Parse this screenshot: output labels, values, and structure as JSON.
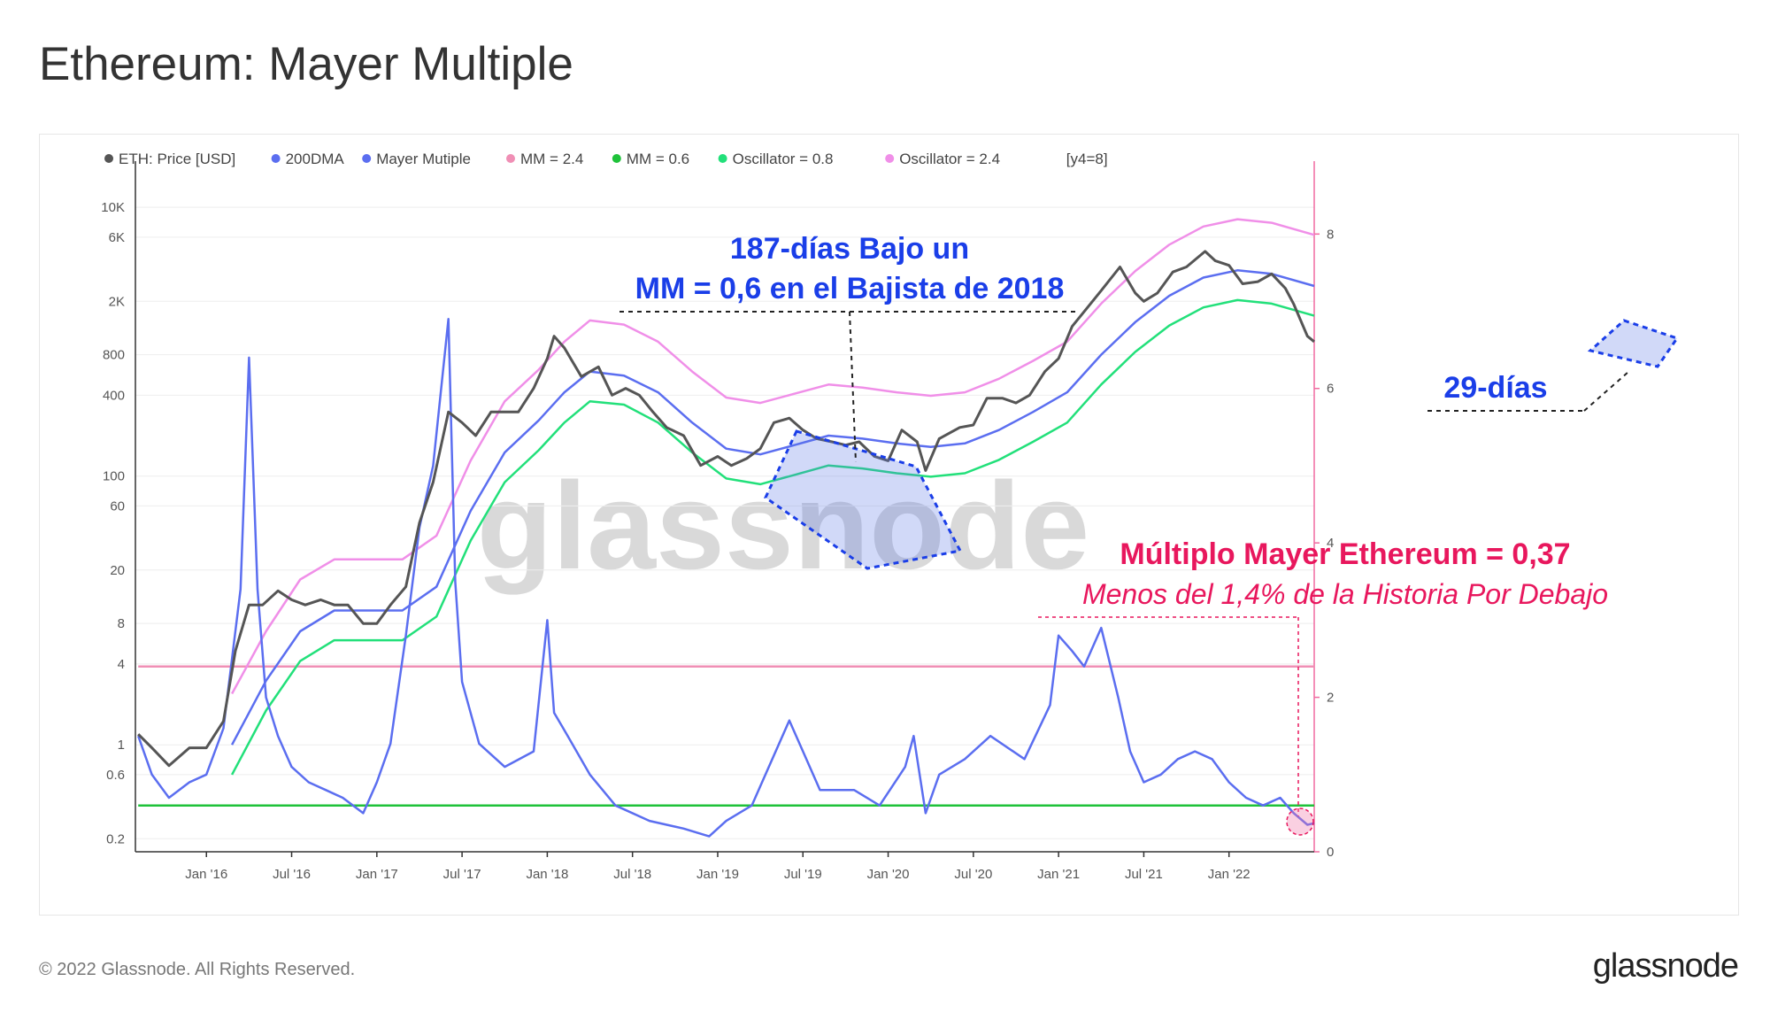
{
  "page": {
    "title": "Ethereum: Mayer Multiple",
    "footer_copyright": "© 2022 Glassnode. All Rights Reserved.",
    "footer_brand": "glassnode",
    "watermark": "glassnode"
  },
  "colors": {
    "price": "#555555",
    "dma": "#5b6ef0",
    "mayer": "#5b6ef0",
    "mm_high": "#f08fb5",
    "mm_low": "#1fc23a",
    "osc_low": "#22e07a",
    "osc_high": "#f08fe8",
    "annotation_blue": "#1a3ee8",
    "annotation_red": "#e8175d"
  },
  "legend": [
    {
      "label": "ETH: Price [USD]",
      "color": "#555555"
    },
    {
      "label": "200DMA",
      "color": "#5b6ef0"
    },
    {
      "label": "Mayer Mutiple",
      "color": "#5b6ef0"
    },
    {
      "label": "MM = 2.4",
      "color": "#f08fb5"
    },
    {
      "label": "MM = 0.6",
      "color": "#1fc23a"
    },
    {
      "label": "Oscillator = 0.8",
      "color": "#22e07a"
    },
    {
      "label": "Oscillator = 2.4",
      "color": "#f08fe8"
    },
    {
      "label": "[y4=8]",
      "color": ""
    }
  ],
  "annotations": {
    "bear_2018_line1": "187-días Bajo un",
    "bear_2018_line2": "MM = 0,6 en el Bajista de 2018",
    "days_2022": "29-días",
    "mm_value": "Múltiplo Mayer Ethereum = 0,37",
    "mm_history": "Menos del 1,4% de la Historia Por Debajo"
  },
  "chart_data": {
    "type": "line",
    "x_range": [
      "2015-08",
      "2022-07"
    ],
    "x_ticks": [
      "Jan '16",
      "Jul '16",
      "Jan '17",
      "Jul '17",
      "Jan '18",
      "Jul '18",
      "Jan '19",
      "Jul '19",
      "Jan '20",
      "Jul '20",
      "Jan '21",
      "Jul '21",
      "Jan '22"
    ],
    "y_left": {
      "scale": "log",
      "range": [
        0.16,
        14000
      ],
      "ticks": [
        "10K",
        "6K",
        "2K",
        "800",
        "400",
        "100",
        "60",
        "20",
        "8",
        "4",
        "1",
        "0.6",
        "0.2"
      ]
    },
    "y_right": {
      "scale": "linear",
      "range": [
        0,
        8.6
      ],
      "ticks": [
        "8",
        "6",
        "4",
        "2",
        "0"
      ]
    },
    "series": [
      {
        "name": "ETH: Price [USD]",
        "axis": "left",
        "x": [
          2015.6,
          2015.68,
          2015.78,
          2015.9,
          2016.0,
          2016.1,
          2016.17,
          2016.25,
          2016.33,
          2016.42,
          2016.5,
          2016.58,
          2016.67,
          2016.75,
          2016.83,
          2016.92,
          2017.0,
          2017.08,
          2017.17,
          2017.25,
          2017.33,
          2017.42,
          2017.5,
          2017.58,
          2017.67,
          2017.75,
          2017.83,
          2017.92,
          2018.0,
          2018.04,
          2018.1,
          2018.2,
          2018.3,
          2018.38,
          2018.46,
          2018.54,
          2018.62,
          2018.7,
          2018.8,
          2018.9,
          2019.0,
          2019.08,
          2019.17,
          2019.25,
          2019.33,
          2019.42,
          2019.5,
          2019.58,
          2019.67,
          2019.75,
          2019.83,
          2019.92,
          2020.0,
          2020.08,
          2020.17,
          2020.22,
          2020.3,
          2020.42,
          2020.5,
          2020.58,
          2020.67,
          2020.75,
          2020.83,
          2020.92,
          2021.0,
          2021.08,
          2021.17,
          2021.25,
          2021.36,
          2021.45,
          2021.5,
          2021.58,
          2021.67,
          2021.75,
          2021.86,
          2021.92,
          2022.0,
          2022.08,
          2022.17,
          2022.25,
          2022.33,
          2022.38,
          2022.46,
          2022.5
        ],
        "y": [
          1.2,
          0.95,
          0.7,
          0.95,
          0.95,
          1.5,
          5,
          11,
          11,
          14,
          12,
          11,
          12,
          11,
          11,
          8,
          8,
          11,
          15,
          45,
          90,
          300,
          250,
          200,
          300,
          300,
          300,
          450,
          750,
          1100,
          900,
          550,
          650,
          400,
          450,
          400,
          300,
          230,
          200,
          120,
          140,
          120,
          135,
          160,
          250,
          270,
          220,
          190,
          180,
          170,
          180,
          140,
          130,
          220,
          180,
          110,
          190,
          230,
          240,
          380,
          380,
          350,
          400,
          600,
          750,
          1300,
          1800,
          2400,
          3600,
          2300,
          2000,
          2300,
          3300,
          3600,
          4700,
          4000,
          3700,
          2700,
          2800,
          3200,
          2500,
          1900,
          1100,
          1000
        ]
      },
      {
        "name": "200DMA",
        "axis": "left",
        "x": [
          2016.15,
          2016.35,
          2016.55,
          2016.75,
          2016.95,
          2017.15,
          2017.35,
          2017.55,
          2017.75,
          2017.95,
          2018.1,
          2018.25,
          2018.45,
          2018.65,
          2018.85,
          2019.05,
          2019.25,
          2019.45,
          2019.65,
          2019.85,
          2020.05,
          2020.25,
          2020.45,
          2020.65,
          2020.85,
          2021.05,
          2021.25,
          2021.45,
          2021.65,
          2021.85,
          2022.05,
          2022.25,
          2022.5
        ],
        "y": [
          1.0,
          3,
          7,
          10,
          10,
          10,
          15,
          55,
          150,
          260,
          420,
          600,
          560,
          420,
          250,
          160,
          145,
          170,
          200,
          190,
          175,
          165,
          175,
          220,
          300,
          420,
          800,
          1400,
          2200,
          3000,
          3400,
          3200,
          2600
        ]
      },
      {
        "name": "Mayer Mutiple",
        "axis": "right",
        "x": [
          2015.6,
          2015.68,
          2015.78,
          2015.9,
          2016.0,
          2016.1,
          2016.2,
          2016.25,
          2016.3,
          2016.35,
          2016.42,
          2016.5,
          2016.6,
          2016.7,
          2016.8,
          2016.92,
          2017.0,
          2017.08,
          2017.17,
          2017.25,
          2017.33,
          2017.42,
          2017.46,
          2017.5,
          2017.6,
          2017.75,
          2017.92,
          2018.0,
          2018.04,
          2018.12,
          2018.25,
          2018.4,
          2018.6,
          2018.8,
          2018.95,
          2019.05,
          2019.2,
          2019.42,
          2019.5,
          2019.6,
          2019.8,
          2019.95,
          2020.1,
          2020.15,
          2020.22,
          2020.3,
          2020.45,
          2020.6,
          2020.8,
          2020.95,
          2021.0,
          2021.08,
          2021.15,
          2021.25,
          2021.35,
          2021.42,
          2021.5,
          2021.6,
          2021.7,
          2021.8,
          2021.9,
          2022.0,
          2022.1,
          2022.2,
          2022.3,
          2022.38,
          2022.46,
          2022.5
        ],
        "y": [
          1.5,
          1.0,
          0.7,
          0.9,
          1.0,
          1.6,
          3.4,
          6.4,
          3.4,
          2.0,
          1.5,
          1.1,
          0.9,
          0.8,
          0.7,
          0.5,
          0.9,
          1.4,
          2.8,
          4.2,
          5.0,
          6.9,
          3.5,
          2.2,
          1.4,
          1.1,
          1.3,
          3.0,
          1.8,
          1.5,
          1.0,
          0.6,
          0.4,
          0.3,
          0.2,
          0.4,
          0.6,
          1.7,
          1.3,
          0.8,
          0.8,
          0.6,
          1.1,
          1.5,
          0.5,
          1.0,
          1.2,
          1.5,
          1.2,
          1.9,
          2.8,
          2.6,
          2.4,
          2.9,
          2.0,
          1.3,
          0.9,
          1.0,
          1.2,
          1.3,
          1.2,
          0.9,
          0.7,
          0.6,
          0.7,
          0.5,
          0.35,
          0.37
        ]
      },
      {
        "name": "Oscillator = 0.8",
        "axis": "left",
        "x": [
          2016.15,
          2016.35,
          2016.55,
          2016.75,
          2016.95,
          2017.15,
          2017.35,
          2017.55,
          2017.75,
          2017.95,
          2018.1,
          2018.25,
          2018.45,
          2018.65,
          2018.85,
          2019.05,
          2019.25,
          2019.45,
          2019.65,
          2019.85,
          2020.05,
          2020.25,
          2020.45,
          2020.65,
          2020.85,
          2021.05,
          2021.25,
          2021.45,
          2021.65,
          2021.85,
          2022.05,
          2022.25,
          2022.5
        ],
        "y": [
          0.6,
          1.8,
          4.2,
          6,
          6,
          6,
          9,
          33,
          90,
          156,
          250,
          360,
          340,
          250,
          150,
          96,
          87,
          102,
          120,
          114,
          105,
          99,
          105,
          132,
          180,
          250,
          480,
          840,
          1320,
          1800,
          2040,
          1920,
          1560
        ]
      },
      {
        "name": "Oscillator = 2.4",
        "axis": "left",
        "x": [
          2016.15,
          2016.35,
          2016.55,
          2016.75,
          2016.95,
          2017.15,
          2017.35,
          2017.55,
          2017.75,
          2017.95,
          2018.1,
          2018.25,
          2018.45,
          2018.65,
          2018.85,
          2019.05,
          2019.25,
          2019.45,
          2019.65,
          2019.85,
          2020.05,
          2020.25,
          2020.45,
          2020.65,
          2020.85,
          2021.05,
          2021.25,
          2021.45,
          2021.65,
          2021.85,
          2022.05,
          2022.25,
          2022.5
        ],
        "y": [
          2.4,
          7,
          17,
          24,
          24,
          24,
          36,
          130,
          360,
          620,
          1000,
          1440,
          1340,
          1000,
          600,
          384,
          350,
          410,
          480,
          456,
          420,
          396,
          420,
          530,
          720,
          1000,
          1920,
          3360,
          5280,
          7200,
          8160,
          7680,
          6240
        ]
      },
      {
        "name": "MM = 2.4",
        "axis": "right",
        "x": [
          2015.6,
          2022.5
        ],
        "y": [
          2.4,
          2.4
        ]
      },
      {
        "name": "MM = 0.6",
        "axis": "right",
        "x": [
          2015.6,
          2022.5
        ],
        "y": [
          0.6,
          0.6
        ]
      }
    ]
  }
}
